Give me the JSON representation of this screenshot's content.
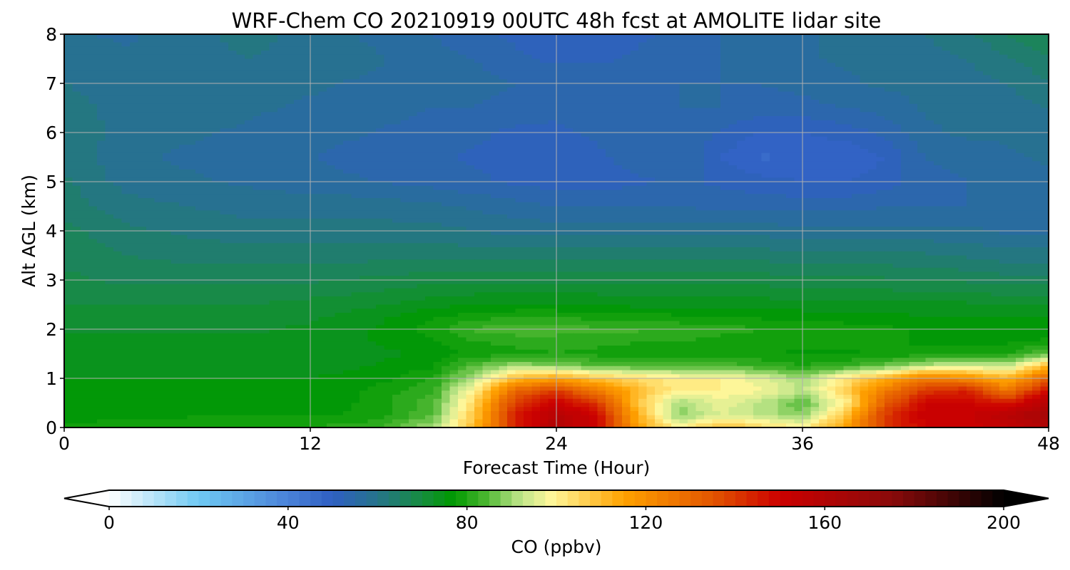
{
  "chart_data": {
    "type": "heatmap",
    "title": "WRF-Chem CO  20210919 00UTC 48h fcst at AMOLITE lidar site",
    "xlabel": "Forecast Time (Hour)",
    "ylabel": "Alt AGL (km)",
    "xlim": [
      0,
      48
    ],
    "ylim": [
      0,
      8
    ],
    "xticks": [
      0,
      12,
      24,
      36,
      48
    ],
    "yticks": [
      0,
      1,
      2,
      3,
      4,
      5,
      6,
      7,
      8
    ],
    "grid": true,
    "x": [
      0,
      3,
      6,
      9,
      12,
      15,
      18,
      20,
      22,
      24,
      26,
      28,
      30,
      32,
      34,
      36,
      38,
      40,
      42,
      44,
      46,
      48
    ],
    "y": [
      0,
      0.25,
      0.5,
      0.75,
      1,
      1.25,
      1.5,
      1.75,
      2,
      2.25,
      2.5,
      3,
      3.5,
      4,
      4.5,
      5,
      5.5,
      6,
      6.5,
      7,
      7.5,
      8
    ],
    "z": [
      [
        78,
        80,
        80,
        80,
        80,
        82,
        90,
        110,
        145,
        160,
        150,
        115,
        100,
        110,
        105,
        100,
        115,
        140,
        150,
        150,
        155,
        160
      ],
      [
        76,
        76,
        77,
        77,
        77,
        78,
        85,
        108,
        145,
        158,
        150,
        112,
        88,
        95,
        92,
        88,
        108,
        140,
        152,
        152,
        158,
        165
      ],
      [
        76,
        76,
        76,
        76,
        76,
        78,
        84,
        105,
        140,
        152,
        140,
        108,
        90,
        97,
        92,
        85,
        98,
        132,
        150,
        150,
        146,
        160
      ],
      [
        76,
        76,
        76,
        76,
        76,
        78,
        82,
        100,
        130,
        140,
        125,
        110,
        100,
        100,
        98,
        92,
        105,
        125,
        140,
        145,
        125,
        150
      ],
      [
        75,
        75,
        75,
        75,
        75,
        76,
        80,
        92,
        110,
        115,
        108,
        104,
        100,
        100,
        96,
        90,
        102,
        112,
        125,
        120,
        112,
        132
      ],
      [
        74,
        74,
        74,
        74,
        74,
        75,
        77,
        85,
        90,
        88,
        85,
        84,
        84,
        84,
        82,
        80,
        82,
        86,
        92,
        95,
        92,
        112
      ],
      [
        74,
        74,
        74,
        74,
        74,
        74,
        76,
        78,
        79,
        80,
        79,
        79,
        79,
        78,
        78,
        77,
        77,
        78,
        78,
        79,
        80,
        85
      ],
      [
        73,
        73,
        73,
        73,
        74,
        75,
        77,
        80,
        81,
        81,
        81,
        80,
        80,
        79,
        79,
        78,
        78,
        78,
        77,
        77,
        77,
        78
      ],
      [
        72,
        72,
        72,
        72,
        73,
        75,
        79,
        83,
        84,
        84,
        83,
        83,
        82,
        81,
        80,
        79,
        79,
        78,
        77,
        77,
        76,
        76
      ],
      [
        71,
        71,
        71,
        71,
        72,
        74,
        77,
        79,
        80,
        80,
        79,
        79,
        78,
        78,
        77,
        77,
        76,
        76,
        75,
        75,
        75,
        75
      ],
      [
        70,
        70,
        70,
        70,
        71,
        72,
        74,
        75,
        75,
        75,
        75,
        74,
        74,
        74,
        74,
        73,
        73,
        73,
        73,
        73,
        72,
        72
      ],
      [
        68,
        67,
        67,
        67,
        67,
        68,
        69,
        69,
        69,
        69,
        69,
        69,
        69,
        69,
        69,
        68,
        68,
        68,
        67,
        67,
        66,
        66
      ],
      [
        67,
        65,
        64,
        64,
        64,
        64,
        64,
        64,
        64,
        64,
        64,
        64,
        64,
        64,
        64,
        63,
        63,
        63,
        63,
        62,
        61,
        61
      ],
      [
        66,
        63,
        62,
        61,
        61,
        61,
        61,
        60,
        59,
        59,
        59,
        59,
        59,
        59,
        59,
        58,
        58,
        58,
        58,
        58,
        57,
        57
      ],
      [
        64,
        61,
        60,
        59,
        59,
        59,
        58,
        57,
        56,
        55,
        55,
        55,
        55,
        54,
        54,
        54,
        54,
        55,
        55,
        55,
        56,
        56
      ],
      [
        63,
        59,
        58,
        57,
        56,
        55,
        54,
        53,
        52,
        51,
        51,
        52,
        53,
        52,
        51,
        50,
        50,
        51,
        54,
        55,
        56,
        57
      ],
      [
        62,
        58,
        57,
        56,
        55,
        54,
        53,
        52,
        52,
        50,
        52,
        54,
        55,
        50,
        47,
        48,
        48,
        50,
        55,
        56,
        57,
        58
      ],
      [
        62,
        59,
        58,
        57,
        56,
        55,
        54,
        53,
        52,
        52,
        53,
        54,
        55,
        52,
        50,
        50,
        51,
        53,
        57,
        58,
        58,
        59
      ],
      [
        61,
        59,
        59,
        58,
        57,
        56,
        55,
        55,
        54,
        53,
        54,
        54,
        55,
        55,
        54,
        54,
        55,
        56,
        58,
        58,
        59,
        60
      ],
      [
        60,
        59,
        59,
        59,
        58,
        57,
        56,
        56,
        55,
        54,
        54,
        55,
        55,
        55,
        55,
        56,
        57,
        58,
        58,
        59,
        60,
        62
      ],
      [
        59,
        58,
        59,
        60,
        59,
        58,
        56,
        55,
        53,
        52,
        52,
        53,
        54,
        55,
        56,
        57,
        58,
        58,
        59,
        60,
        62,
        65
      ],
      [
        58,
        57,
        59,
        61,
        59,
        57,
        55,
        53,
        52,
        51,
        51,
        52,
        53,
        55,
        56,
        57,
        58,
        59,
        60,
        62,
        65,
        68
      ]
    ],
    "colorbar": {
      "label": "CO  (ppbv)",
      "min": 0,
      "max": 200,
      "ticks": [
        0,
        40,
        80,
        120,
        160,
        200
      ],
      "extend": "both",
      "stops": [
        {
          "v": 0,
          "c": "#ffffff"
        },
        {
          "v": 20,
          "c": "#6fc9f3"
        },
        {
          "v": 40,
          "c": "#4a82d8"
        },
        {
          "v": 50,
          "c": "#2f5fc2"
        },
        {
          "v": 60,
          "c": "#26748a"
        },
        {
          "v": 70,
          "c": "#168d3e"
        },
        {
          "v": 77,
          "c": "#009900"
        },
        {
          "v": 84,
          "c": "#49b52f"
        },
        {
          "v": 92,
          "c": "#bfe68a"
        },
        {
          "v": 99,
          "c": "#fff79a"
        },
        {
          "v": 115,
          "c": "#ffa200"
        },
        {
          "v": 135,
          "c": "#e25500"
        },
        {
          "v": 150,
          "c": "#cc0000"
        },
        {
          "v": 175,
          "c": "#8a0a0a"
        },
        {
          "v": 200,
          "c": "#000000"
        }
      ]
    }
  }
}
